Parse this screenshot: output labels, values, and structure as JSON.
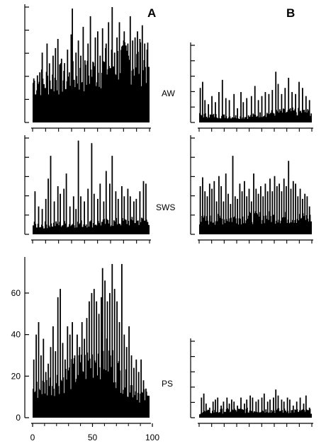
{
  "figure": {
    "panel_labels": [
      "A",
      "B"
    ],
    "state_labels": [
      "AW",
      "SWS",
      "PS"
    ],
    "colors": {
      "ink": "#000000",
      "background": "#ffffff"
    }
  },
  "chart_data": [
    {
      "type": "bar",
      "column": "A",
      "state": "AW",
      "x_range": [
        0,
        97
      ],
      "ylim": [
        0,
        76
      ],
      "baseline": 3,
      "levels": [
        [
          0,
          29
        ],
        [
          25,
          32
        ],
        [
          40,
          33
        ],
        [
          55,
          38
        ],
        [
          70,
          44
        ],
        [
          85,
          44
        ],
        [
          97,
          42
        ]
      ],
      "peaks": [
        [
          1,
          29
        ],
        [
          4,
          31
        ],
        [
          6,
          33
        ],
        [
          8,
          46
        ],
        [
          12,
          52
        ],
        [
          14,
          39
        ],
        [
          17,
          44
        ],
        [
          19,
          49
        ],
        [
          21,
          55
        ],
        [
          24,
          42
        ],
        [
          26,
          34
        ],
        [
          29,
          48
        ],
        [
          32,
          58
        ],
        [
          33,
          75
        ],
        [
          36,
          46
        ],
        [
          38,
          54
        ],
        [
          40,
          44
        ],
        [
          42,
          63
        ],
        [
          44,
          38
        ],
        [
          46,
          52
        ],
        [
          48,
          70
        ],
        [
          50,
          40
        ],
        [
          52,
          56
        ],
        [
          54,
          60
        ],
        [
          56,
          44
        ],
        [
          58,
          62
        ],
        [
          61,
          52
        ],
        [
          63,
          66
        ],
        [
          66,
          76
        ],
        [
          68,
          46
        ],
        [
          70,
          56
        ],
        [
          72,
          66
        ],
        [
          74,
          50
        ],
        [
          76,
          60
        ],
        [
          79,
          52
        ],
        [
          81,
          70
        ],
        [
          83,
          54
        ],
        [
          85,
          56
        ],
        [
          87,
          60
        ],
        [
          89,
          55
        ],
        [
          91,
          64
        ],
        [
          93,
          52
        ],
        [
          95,
          48
        ]
      ],
      "tick_count": 7,
      "show_tick_labels": false
    },
    {
      "type": "bar",
      "column": "B",
      "state": "AW",
      "x_range": [
        0,
        97
      ],
      "ylim": [
        0,
        76
      ],
      "baseline": 3,
      "levels": [
        [
          0,
          8
        ],
        [
          20,
          7
        ],
        [
          40,
          6
        ],
        [
          60,
          10
        ],
        [
          80,
          12
        ],
        [
          97,
          11
        ]
      ],
      "peaks": [
        [
          1,
          34
        ],
        [
          3,
          40
        ],
        [
          5,
          22
        ],
        [
          8,
          18
        ],
        [
          11,
          26
        ],
        [
          14,
          20
        ],
        [
          17,
          30
        ],
        [
          20,
          42
        ],
        [
          23,
          24
        ],
        [
          26,
          22
        ],
        [
          30,
          28
        ],
        [
          33,
          14
        ],
        [
          36,
          30
        ],
        [
          38,
          20
        ],
        [
          41,
          24
        ],
        [
          45,
          26
        ],
        [
          48,
          36
        ],
        [
          51,
          22
        ],
        [
          54,
          26
        ],
        [
          57,
          30
        ],
        [
          60,
          28
        ],
        [
          63,
          32
        ],
        [
          66,
          50
        ],
        [
          68,
          38
        ],
        [
          71,
          28
        ],
        [
          74,
          34
        ],
        [
          77,
          44
        ],
        [
          80,
          30
        ],
        [
          83,
          28
        ],
        [
          86,
          40
        ],
        [
          89,
          34
        ],
        [
          92,
          26
        ],
        [
          95,
          22
        ]
      ],
      "tick_count": 7,
      "show_tick_labels": false
    },
    {
      "type": "bar",
      "column": "A",
      "state": "SWS",
      "x_range": [
        0,
        97
      ],
      "ylim": [
        0,
        76
      ],
      "baseline": 3,
      "levels": [
        [
          0,
          8
        ],
        [
          30,
          9
        ],
        [
          60,
          10
        ],
        [
          97,
          12
        ]
      ],
      "peaks": [
        [
          2,
          34
        ],
        [
          5,
          22
        ],
        [
          8,
          20
        ],
        [
          11,
          28
        ],
        [
          13,
          44
        ],
        [
          15,
          62
        ],
        [
          18,
          26
        ],
        [
          21,
          38
        ],
        [
          23,
          32
        ],
        [
          26,
          36
        ],
        [
          28,
          48
        ],
        [
          31,
          22
        ],
        [
          34,
          30
        ],
        [
          36,
          20
        ],
        [
          38,
          74
        ],
        [
          40,
          30
        ],
        [
          43,
          26
        ],
        [
          46,
          36
        ],
        [
          49,
          72
        ],
        [
          51,
          32
        ],
        [
          54,
          28
        ],
        [
          56,
          40
        ],
        [
          59,
          26
        ],
        [
          61,
          50
        ],
        [
          64,
          40
        ],
        [
          66,
          62
        ],
        [
          69,
          34
        ],
        [
          71,
          28
        ],
        [
          74,
          38
        ],
        [
          76,
          30
        ],
        [
          79,
          36
        ],
        [
          81,
          30
        ],
        [
          84,
          26
        ],
        [
          86,
          28
        ],
        [
          89,
          34
        ],
        [
          92,
          42
        ],
        [
          94,
          40
        ]
      ],
      "tick_count": 7,
      "show_tick_labels": false
    },
    {
      "type": "bar",
      "column": "B",
      "state": "SWS",
      "x_range": [
        0,
        97
      ],
      "ylim": [
        0,
        76
      ],
      "baseline": 3,
      "levels": [
        [
          0,
          12
        ],
        [
          30,
          14
        ],
        [
          60,
          15
        ],
        [
          97,
          14
        ]
      ],
      "peaks": [
        [
          1,
          38
        ],
        [
          3,
          45
        ],
        [
          5,
          34
        ],
        [
          7,
          30
        ],
        [
          9,
          40
        ],
        [
          11,
          36
        ],
        [
          13,
          42
        ],
        [
          15,
          26
        ],
        [
          17,
          46
        ],
        [
          19,
          38
        ],
        [
          21,
          26
        ],
        [
          23,
          48
        ],
        [
          25,
          32
        ],
        [
          27,
          24
        ],
        [
          29,
          62
        ],
        [
          31,
          30
        ],
        [
          33,
          28
        ],
        [
          35,
          40
        ],
        [
          37,
          34
        ],
        [
          39,
          42
        ],
        [
          41,
          30
        ],
        [
          43,
          36
        ],
        [
          45,
          26
        ],
        [
          47,
          48
        ],
        [
          49,
          36
        ],
        [
          51,
          32
        ],
        [
          53,
          38
        ],
        [
          55,
          30
        ],
        [
          57,
          40
        ],
        [
          59,
          34
        ],
        [
          61,
          44
        ],
        [
          63,
          34
        ],
        [
          65,
          46
        ],
        [
          67,
          38
        ],
        [
          69,
          40
        ],
        [
          71,
          34
        ],
        [
          73,
          44
        ],
        [
          75,
          38
        ],
        [
          77,
          58
        ],
        [
          79,
          36
        ],
        [
          81,
          42
        ],
        [
          83,
          40
        ],
        [
          85,
          30
        ],
        [
          87,
          36
        ],
        [
          89,
          28
        ],
        [
          91,
          32
        ],
        [
          93,
          30
        ],
        [
          95,
          22
        ]
      ],
      "tick_count": 7,
      "show_tick_labels": false
    },
    {
      "type": "bar",
      "column": "A",
      "state": "PS",
      "x_range": [
        0,
        97
      ],
      "ylim": [
        0,
        76
      ],
      "baseline": 3,
      "levels": [
        [
          0,
          14
        ],
        [
          15,
          18
        ],
        [
          30,
          22
        ],
        [
          45,
          28
        ],
        [
          55,
          34
        ],
        [
          65,
          30
        ],
        [
          75,
          20
        ],
        [
          90,
          12
        ],
        [
          97,
          10
        ]
      ],
      "peaks": [
        [
          1,
          28
        ],
        [
          3,
          40
        ],
        [
          5,
          46
        ],
        [
          7,
          30
        ],
        [
          9,
          38
        ],
        [
          11,
          22
        ],
        [
          13,
          26
        ],
        [
          15,
          34
        ],
        [
          17,
          44
        ],
        [
          19,
          32
        ],
        [
          21,
          58
        ],
        [
          23,
          62
        ],
        [
          25,
          36
        ],
        [
          27,
          28
        ],
        [
          29,
          44
        ],
        [
          31,
          40
        ],
        [
          33,
          46
        ],
        [
          35,
          30
        ],
        [
          37,
          40
        ],
        [
          39,
          34
        ],
        [
          41,
          46
        ],
        [
          43,
          38
        ],
        [
          45,
          48
        ],
        [
          47,
          56
        ],
        [
          49,
          60
        ],
        [
          51,
          62
        ],
        [
          53,
          56
        ],
        [
          55,
          50
        ],
        [
          57,
          58
        ],
        [
          58,
          72
        ],
        [
          60,
          66
        ],
        [
          62,
          56
        ],
        [
          64,
          60
        ],
        [
          66,
          74
        ],
        [
          68,
          62
        ],
        [
          70,
          56
        ],
        [
          72,
          46
        ],
        [
          74,
          74
        ],
        [
          76,
          40
        ],
        [
          78,
          34
        ],
        [
          80,
          44
        ],
        [
          82,
          30
        ],
        [
          84,
          24
        ],
        [
          86,
          28
        ],
        [
          88,
          22
        ],
        [
          90,
          28
        ],
        [
          92,
          18
        ],
        [
          94,
          14
        ],
        [
          96,
          8
        ]
      ],
      "tick_count": 0,
      "show_tick_labels": true,
      "x_ticks": [
        0,
        50,
        100
      ],
      "y_ticks": [
        0,
        20,
        40,
        60
      ],
      "x_axis_max": 100
    },
    {
      "type": "bar",
      "column": "B",
      "state": "PS",
      "x_range": [
        0,
        97
      ],
      "ylim": [
        0,
        76
      ],
      "baseline": 3,
      "levels": [
        [
          0,
          6
        ],
        [
          30,
          8
        ],
        [
          60,
          8
        ],
        [
          97,
          7
        ]
      ],
      "peaks": [
        [
          2,
          20
        ],
        [
          4,
          24
        ],
        [
          6,
          14
        ],
        [
          9,
          10
        ],
        [
          12,
          16
        ],
        [
          14,
          18
        ],
        [
          16,
          20
        ],
        [
          19,
          12
        ],
        [
          21,
          16
        ],
        [
          24,
          20
        ],
        [
          26,
          14
        ],
        [
          28,
          18
        ],
        [
          30,
          16
        ],
        [
          33,
          12
        ],
        [
          36,
          20
        ],
        [
          39,
          14
        ],
        [
          41,
          18
        ],
        [
          44,
          22
        ],
        [
          46,
          20
        ],
        [
          49,
          16
        ],
        [
          51,
          18
        ],
        [
          54,
          20
        ],
        [
          56,
          24
        ],
        [
          59,
          16
        ],
        [
          61,
          18
        ],
        [
          64,
          20
        ],
        [
          66,
          28
        ],
        [
          68,
          22
        ],
        [
          71,
          18
        ],
        [
          73,
          16
        ],
        [
          76,
          20
        ],
        [
          78,
          18
        ],
        [
          81,
          12
        ],
        [
          84,
          16
        ],
        [
          87,
          20
        ],
        [
          90,
          14
        ],
        [
          92,
          22
        ],
        [
          95,
          10
        ]
      ],
      "tick_count": 7,
      "show_tick_labels": false
    }
  ]
}
